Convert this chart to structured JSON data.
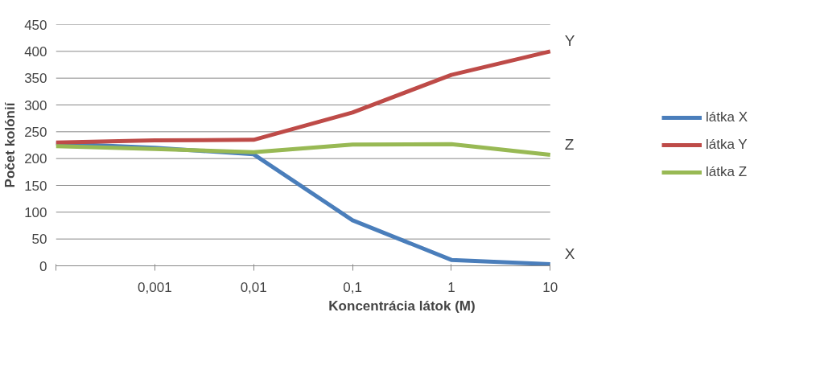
{
  "chart_data": {
    "type": "line",
    "xlabel": "Koncentrácia látok (M)",
    "ylabel": "Počet kolónií",
    "categories": [
      null,
      "0,001",
      "0,01",
      "0,1",
      "1",
      "10"
    ],
    "series": [
      {
        "name": "látka X",
        "color": "#4a7ebb",
        "values": [
          228,
          220,
          208,
          85,
          11,
          3
        ]
      },
      {
        "name": "látka Y",
        "color": "#be4b48",
        "values": [
          230,
          234,
          235,
          286,
          356,
          400
        ]
      },
      {
        "name": "látka Z",
        "color": "#98b954",
        "values": [
          223,
          218,
          212,
          226,
          227,
          207
        ]
      }
    ],
    "ylim": [
      0,
      450
    ],
    "yticks": [
      0,
      50,
      100,
      150,
      200,
      250,
      300,
      350,
      400,
      450
    ],
    "grid": "y",
    "legend": "right",
    "marker": "none",
    "line_style": "solid",
    "annotations": [
      {
        "text": "Y",
        "x": "10",
        "y": 400
      },
      {
        "text": "Z",
        "x": "10",
        "y": 207
      },
      {
        "text": "X",
        "x": "10",
        "y": 3
      }
    ]
  }
}
